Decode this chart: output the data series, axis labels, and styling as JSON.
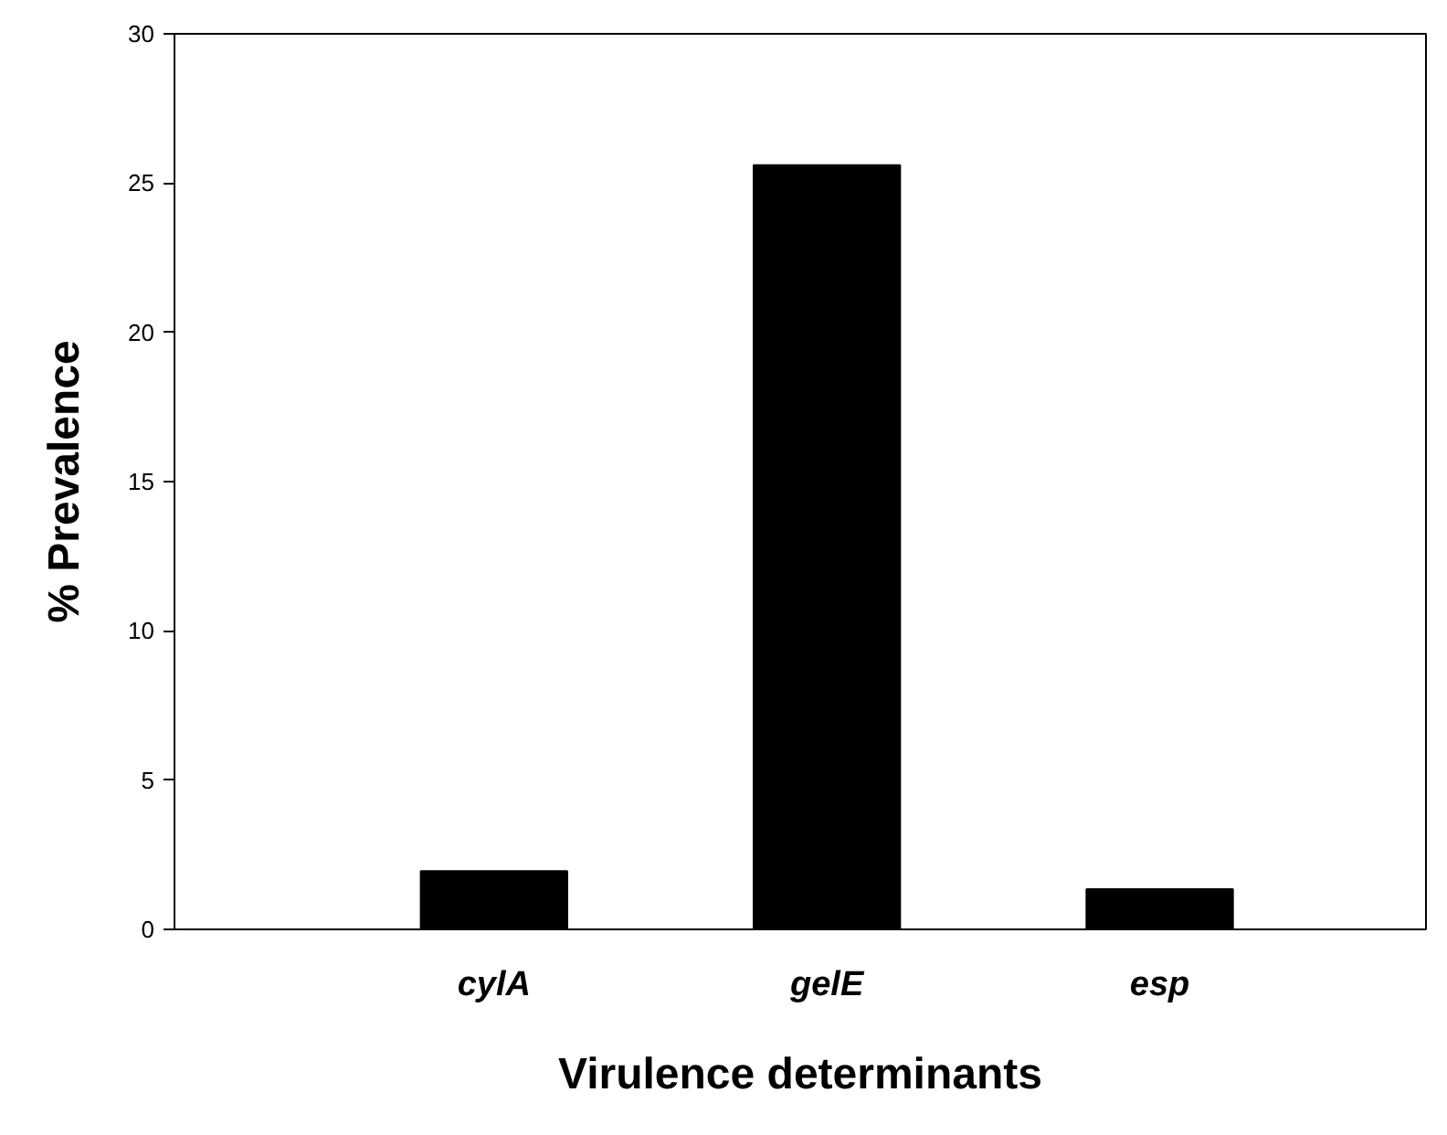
{
  "chart_data": {
    "type": "bar",
    "xlabel": "Virulence determinants",
    "ylabel": "% Prevalence",
    "categories": [
      "cylA",
      "gelE",
      "esp"
    ],
    "values": [
      1.95,
      25.6,
      1.35
    ],
    "color": "#000000",
    "ylim": [
      0,
      30
    ],
    "yticks": [
      0,
      5,
      10,
      15,
      20,
      25,
      30
    ],
    "grid": false
  }
}
